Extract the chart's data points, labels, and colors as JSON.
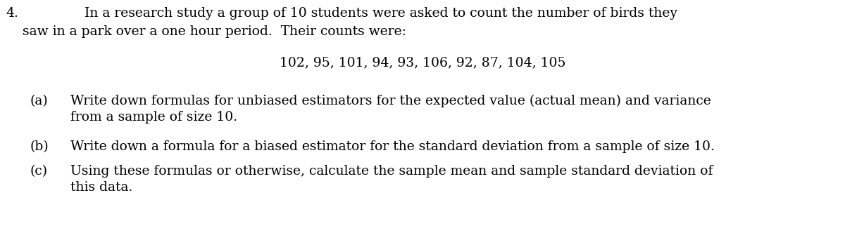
{
  "background_color": "#ffffff",
  "question_number": "4.",
  "line1": "In a research study a group of 10 students were asked to count the number of birds they",
  "line2": "saw in a park over a one hour period.  Their counts were:",
  "counts_line": "102, 95, 101, 94, 93, 106, 92, 87, 104, 105",
  "part_a_label": "(a)",
  "part_a_line1": "Write down formulas for unbiased estimators for the expected value (actual mean) and variance",
  "part_a_line2": "from a sample of size 10.",
  "part_b_label": "(b)",
  "part_b_line1": "Write down a formula for a biased estimator for the standard deviation from a sample of size 10.",
  "part_c_label": "(c)",
  "part_c_line1": "Using these formulas or otherwise, calculate the sample mean and sample standard deviation of",
  "part_c_line2": "this data.",
  "font_size": 13.5,
  "font_family": "serif",
  "text_color": "#000000",
  "fig_width": 12.0,
  "fig_height": 3.22,
  "dpi": 100
}
